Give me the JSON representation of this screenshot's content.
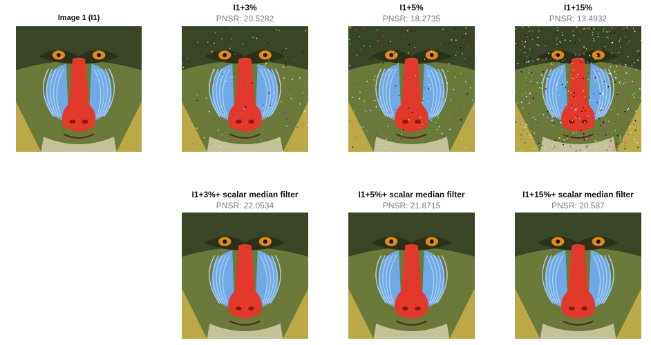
{
  "figure": {
    "panels": [
      {
        "id": "original",
        "title": "Image 1 (I1)",
        "subtitle": "",
        "noise": 0
      },
      {
        "id": "noise-3",
        "title": "I1+3%",
        "subtitle": "PNSR: 20.5282",
        "noise": 0.03
      },
      {
        "id": "noise-5",
        "title": "I1+5%",
        "subtitle": "PNSR: 18.2735",
        "noise": 0.05
      },
      {
        "id": "noise-15",
        "title": "I1+15%",
        "subtitle": "PNSR: 13.4932",
        "noise": 0.15
      },
      {
        "id": "filtered-3",
        "title": "I1+3%+ scalar median filter",
        "subtitle": "PNSR: 22.0534",
        "noise": 0
      },
      {
        "id": "filtered-5",
        "title": "I1+5%+ scalar median filter",
        "subtitle": "PNSR: 21.8715",
        "noise": 0
      },
      {
        "id": "filtered-15",
        "title": "I1+15%+ scalar median filter",
        "subtitle": "PNSR: 20.587",
        "noise": 0
      }
    ]
  },
  "colors": {
    "fur_dark": "#3a4526",
    "fur_olive": "#6b7a3a",
    "fur_yellow": "#c9b04a",
    "fur_light": "#d9d3b0",
    "cheek_blue": "#6fa9e6",
    "cheek_blue_light": "#a9cdf2",
    "nose_red": "#e23a2a",
    "eye_orange": "#e08a1a",
    "title_text": "#111111",
    "subtitle_text": "#7a7a7a"
  }
}
